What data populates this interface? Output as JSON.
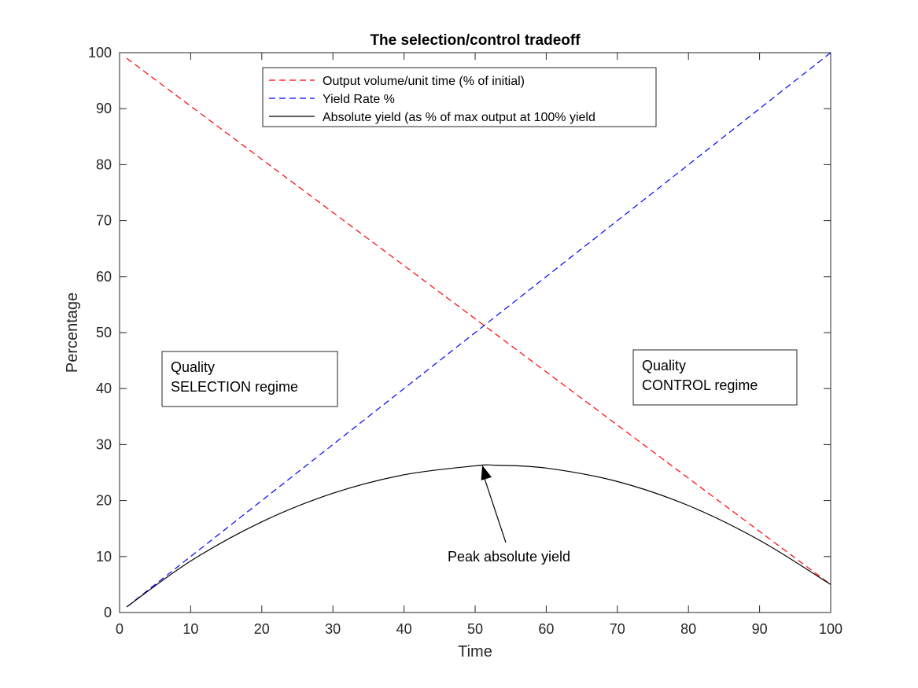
{
  "chart_data": {
    "type": "line",
    "title": "The selection/control tradeoff",
    "xlabel": "Time",
    "ylabel": "Percentage",
    "xlim": [
      0,
      100
    ],
    "ylim": [
      0,
      100
    ],
    "x_ticks": [
      0,
      10,
      20,
      30,
      40,
      50,
      60,
      70,
      80,
      90,
      100
    ],
    "y_ticks": [
      0,
      10,
      20,
      30,
      40,
      50,
      60,
      70,
      80,
      90,
      100
    ],
    "grid": false,
    "legend_position": "top-center",
    "series": [
      {
        "name": "Output volume/unit time (% of initial)",
        "color": "#ff0000",
        "style": "dashed",
        "x": [
          1,
          100
        ],
        "y": [
          99,
          5
        ]
      },
      {
        "name": "Yield Rate %",
        "color": "#0000ff",
        "style": "dashed",
        "x": [
          1,
          100
        ],
        "y": [
          1,
          100
        ]
      },
      {
        "name": "Absolute yield (as % of max output at 100% yield",
        "color": "#000000",
        "style": "solid",
        "x": [
          1,
          10,
          20,
          30,
          40,
          50,
          53,
          60,
          70,
          80,
          90,
          100
        ],
        "y": [
          1,
          9.2,
          16.2,
          21.3,
          24.6,
          26.2,
          26.3,
          25.8,
          23.4,
          19.1,
          12.9,
          5
        ]
      }
    ],
    "annotations": [
      {
        "lines": [
          "Quality",
          "SELECTION regime"
        ],
        "boxed": true
      },
      {
        "lines": [
          "Quality",
          "CONTROL regime"
        ],
        "boxed": true
      },
      {
        "text": "Peak absolute yield",
        "arrow_to": [
          51,
          26.3
        ]
      }
    ]
  }
}
